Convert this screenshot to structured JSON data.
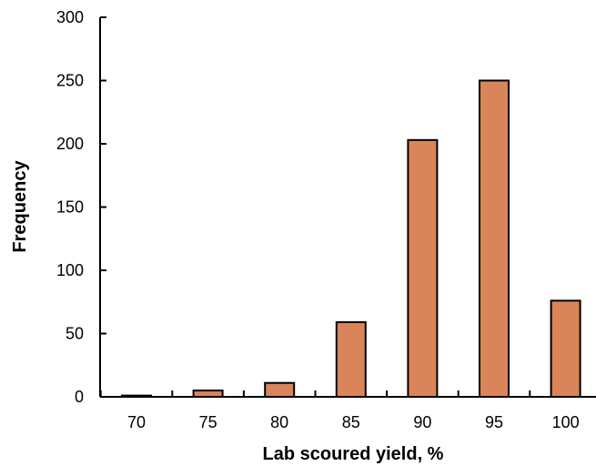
{
  "chart_data": {
    "type": "bar",
    "title": "",
    "xlabel": "Lab scoured yield, %",
    "ylabel": "Frequency",
    "categories": [
      "70",
      "75",
      "80",
      "85",
      "90",
      "95",
      "100"
    ],
    "values": [
      1,
      5,
      11,
      59,
      203,
      250,
      76
    ],
    "ylim": [
      0,
      300
    ],
    "yticks": [
      "0",
      "50",
      "100",
      "150",
      "200",
      "250",
      "300"
    ],
    "grid": false,
    "legend": "none",
    "colors": {
      "bar_fill": "#D98559",
      "bar_stroke": "#000000",
      "axis": "#000000"
    }
  }
}
